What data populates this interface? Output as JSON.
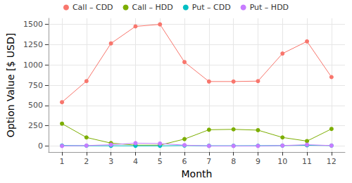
{
  "chart_data": {
    "type": "line",
    "x_label": "Month",
    "y_label": "Option Value [$ USD]",
    "x": [
      1,
      2,
      3,
      4,
      5,
      6,
      7,
      8,
      9,
      10,
      11,
      12
    ],
    "series": [
      {
        "name": "Call – CDD",
        "color": "#F8766D",
        "values": [
          540,
          800,
          1265,
          1475,
          1500,
          1035,
          795,
          795,
          800,
          1140,
          1290,
          850
        ]
      },
      {
        "name": "Call – HDD",
        "color": "#7CAE00",
        "values": [
          275,
          105,
          35,
          10,
          10,
          85,
          200,
          205,
          195,
          105,
          60,
          210
        ]
      },
      {
        "name": "Put – CDD",
        "color": "#00BFC4",
        "values": [
          5,
          3,
          2,
          1,
          1,
          5,
          2,
          2,
          3,
          5,
          8,
          5
        ]
      },
      {
        "name": "Put – HDD",
        "color": "#C77CFF",
        "values": [
          0,
          5,
          15,
          35,
          30,
          10,
          0,
          0,
          0,
          5,
          15,
          5
        ]
      }
    ],
    "xlim": [
      0.45,
      12.55
    ],
    "xticks": [
      1,
      2,
      3,
      4,
      5,
      6,
      7,
      8,
      9,
      10,
      11,
      12
    ],
    "ylim": [
      -75,
      1575
    ],
    "yticks": [
      0,
      250,
      500,
      750,
      1000,
      1250,
      1500
    ],
    "grid": true,
    "legend": "top",
    "marker": "circle",
    "line_style": "solid"
  }
}
